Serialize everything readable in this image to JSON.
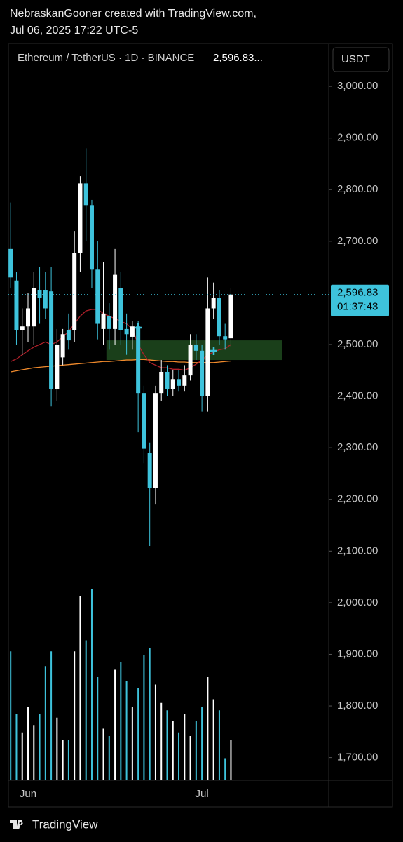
{
  "header": {
    "line1": "NebraskanGooner created with TradingView.com,",
    "line2": "Jul 06, 2025 17:22 UTC-5"
  },
  "footer": {
    "brand": "TradingView"
  },
  "chart_data": {
    "type": "candlestick",
    "symbol": "Ethereum / TetherUS · 1D · BINANCE",
    "legend_price": "2,596.83...",
    "currency": "USDT",
    "categories": [
      null,
      null,
      null,
      "Jun",
      null,
      null,
      null,
      null,
      null,
      null,
      null,
      null,
      null,
      null,
      null,
      null,
      null,
      null,
      null,
      null,
      null,
      null,
      null,
      null,
      null,
      null,
      null,
      null,
      null,
      null,
      null,
      null,
      null,
      "Jul",
      null,
      null,
      null,
      null,
      null
    ],
    "open": [
      2685,
      2624,
      2528,
      2535,
      2535,
      2605,
      2605,
      2603,
      2413,
      2475,
      2528,
      2528,
      2678,
      2812,
      2770,
      2645,
      2530,
      2555,
      2530,
      2610,
      2530,
      2515,
      2535,
      2406,
      2290,
      2222,
      2406,
      2447,
      2413,
      2433,
      2420,
      2440,
      2500,
      2488,
      2400,
      2570,
      2590,
      2516,
      2512
    ],
    "high": [
      2775,
      2640,
      2570,
      2600,
      2640,
      2650,
      2640,
      2650,
      2530,
      2530,
      2560,
      2720,
      2826,
      2880,
      2780,
      2700,
      2660,
      2580,
      2685,
      2640,
      2560,
      2545,
      2545,
      2420,
      2310,
      2420,
      2470,
      2460,
      2450,
      2450,
      2460,
      2520,
      2520,
      2500,
      2630,
      2620,
      2605,
      2540,
      2610
    ],
    "low": [
      2610,
      2500,
      2480,
      2505,
      2500,
      2540,
      2550,
      2380,
      2390,
      2460,
      2490,
      2505,
      2640,
      2700,
      2610,
      2510,
      2500,
      2490,
      2500,
      2500,
      2480,
      2490,
      2330,
      2270,
      2110,
      2190,
      2390,
      2400,
      2400,
      2410,
      2410,
      2430,
      2470,
      2370,
      2370,
      2550,
      2500,
      2490,
      2495
    ],
    "close": [
      2630,
      2528,
      2535,
      2570,
      2610,
      2590,
      2570,
      2413,
      2500,
      2520,
      2508,
      2678,
      2812,
      2770,
      2645,
      2540,
      2560,
      2530,
      2635,
      2528,
      2520,
      2535,
      2406,
      2298,
      2222,
      2406,
      2447,
      2413,
      2433,
      2420,
      2440,
      2500,
      2488,
      2400,
      2570,
      2590,
      2516,
      2510,
      2596.83
    ],
    "up_color": "#ffffff",
    "down_color": "#3ec3dc",
    "volume": [
      175,
      90,
      65,
      100,
      75,
      90,
      155,
      175,
      85,
      55,
      55,
      175,
      250,
      190,
      260,
      140,
      70,
      60,
      150,
      160,
      135,
      100,
      125,
      170,
      180,
      130,
      105,
      95,
      80,
      65,
      90,
      60,
      80,
      100,
      140,
      110,
      95,
      30,
      55
    ],
    "vlim": [
      0,
      1000
    ],
    "overlays": [
      {
        "color": "#f08a2c",
        "values": [
          2447,
          2449,
          2451,
          2453,
          2455,
          2456,
          2457,
          2458,
          2459,
          2460,
          2461,
          2462,
          2463,
          2464,
          2465,
          2466,
          2467,
          2467,
          2468,
          2469,
          2470,
          2470,
          2471,
          2471,
          2470,
          2469,
          2468,
          2467,
          2467,
          2466,
          2466,
          2465,
          2465,
          2465,
          2465,
          2465,
          2466,
          2467,
          2468
        ]
      },
      {
        "color": "#b0202a",
        "values": [
          2467,
          2472,
          2480,
          2488,
          2495,
          2500,
          2505,
          2500,
          2505,
          2515,
          2525,
          2540,
          2555,
          2565,
          2568,
          2568,
          2560,
          2555,
          2550,
          2545,
          2540,
          2530,
          2500,
          2480,
          2465,
          2460,
          2455,
          2455,
          2452,
          2452,
          2450,
          2455,
          2462,
          2470,
          2480,
          2485,
          2490,
          2492,
          2500
        ]
      }
    ],
    "zone": {
      "top": 2508,
      "bottom": 2470,
      "color": "#1e4a1e"
    },
    "last_price": {
      "value": 2596.83,
      "label": "2,596.83"
    },
    "countdown": "01:37:43",
    "ylim": [
      1656,
      3083
    ],
    "yticks": [
      {
        "value": 1700,
        "label": "1,700.00"
      },
      {
        "value": 1800,
        "label": "1,800.00"
      },
      {
        "value": 1900,
        "label": "1,900.00"
      },
      {
        "value": 2000,
        "label": "2,000.00"
      },
      {
        "value": 2100,
        "label": "2,100.00"
      },
      {
        "value": 2200,
        "label": "2,200.00"
      },
      {
        "value": 2300,
        "label": "2,300.00"
      },
      {
        "value": 2400,
        "label": "2,400.00"
      },
      {
        "value": 2500,
        "label": "2,500.00"
      },
      {
        "value": 2600,
        "label": "2,600.00"
      },
      {
        "value": 2700,
        "label": "2,700.00"
      },
      {
        "value": 2800,
        "label": "2,800.00"
      },
      {
        "value": 2900,
        "label": "2,900.00"
      },
      {
        "value": 3000,
        "label": "3,000.00"
      }
    ]
  }
}
